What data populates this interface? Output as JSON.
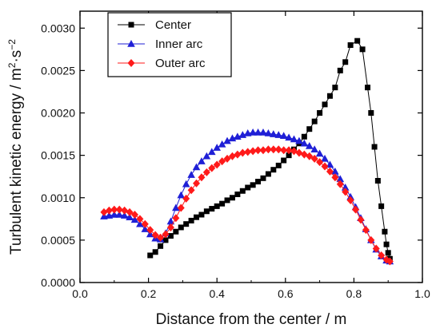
{
  "chart_data": {
    "type": "scatter",
    "xlabel": "Distance from the center / m",
    "ylabel": "Turbulent kinetic energy / m",
    "ylabel_sup1": "2",
    "ylabel_mid": "·s",
    "ylabel_sup2": "−2",
    "xlim": [
      0.0,
      1.0
    ],
    "ylim": [
      0.0,
      0.0032
    ],
    "x_ticks": [
      0.0,
      0.2,
      0.4,
      0.6,
      0.8,
      1.0
    ],
    "x_tick_labels": [
      "0.0",
      "0.2",
      "0.4",
      "0.6",
      "0.8",
      "1.0"
    ],
    "y_ticks": [
      0.0,
      0.0005,
      0.001,
      0.0015,
      0.002,
      0.0025,
      0.003
    ],
    "y_tick_labels": [
      "0.0000",
      "0.0005",
      "0.0010",
      "0.0015",
      "0.0020",
      "0.0025",
      "0.0030"
    ],
    "grid": false,
    "legend_position": "top-left",
    "series": [
      {
        "name": "Center",
        "color": "#000000",
        "marker": "square",
        "points": [
          [
            0.205,
            0.00032
          ],
          [
            0.22,
            0.00036
          ],
          [
            0.235,
            0.00043
          ],
          [
            0.25,
            0.0005
          ],
          [
            0.265,
            0.00055
          ],
          [
            0.28,
            0.0006
          ],
          [
            0.295,
            0.00065
          ],
          [
            0.31,
            0.00069
          ],
          [
            0.325,
            0.00073
          ],
          [
            0.34,
            0.00077
          ],
          [
            0.355,
            0.0008
          ],
          [
            0.37,
            0.00084
          ],
          [
            0.385,
            0.00087
          ],
          [
            0.4,
            0.0009
          ],
          [
            0.415,
            0.00093
          ],
          [
            0.43,
            0.00097
          ],
          [
            0.445,
            0.001
          ],
          [
            0.46,
            0.00104
          ],
          [
            0.475,
            0.00108
          ],
          [
            0.49,
            0.00112
          ],
          [
            0.505,
            0.00115
          ],
          [
            0.52,
            0.00119
          ],
          [
            0.535,
            0.00123
          ],
          [
            0.55,
            0.00128
          ],
          [
            0.565,
            0.00133
          ],
          [
            0.58,
            0.00138
          ],
          [
            0.595,
            0.00144
          ],
          [
            0.61,
            0.0015
          ],
          [
            0.625,
            0.00157
          ],
          [
            0.64,
            0.00164
          ],
          [
            0.655,
            0.00172
          ],
          [
            0.67,
            0.00181
          ],
          [
            0.685,
            0.0019
          ],
          [
            0.7,
            0.002
          ],
          [
            0.715,
            0.0021
          ],
          [
            0.73,
            0.0022
          ],
          [
            0.745,
            0.0023
          ],
          [
            0.76,
            0.0025
          ],
          [
            0.775,
            0.0026
          ],
          [
            0.79,
            0.0028
          ],
          [
            0.81,
            0.00285
          ],
          [
            0.825,
            0.00275
          ],
          [
            0.84,
            0.0023
          ],
          [
            0.85,
            0.002
          ],
          [
            0.86,
            0.0016
          ],
          [
            0.87,
            0.0012
          ],
          [
            0.88,
            0.0009
          ],
          [
            0.89,
            0.0006
          ],
          [
            0.895,
            0.00045
          ],
          [
            0.9,
            0.00035
          ],
          [
            0.905,
            0.00028
          ]
        ]
      },
      {
        "name": "Inner arc",
        "color": "#1f1fd6",
        "marker": "triangle",
        "points": [
          [
            0.07,
            0.00078
          ],
          [
            0.085,
            0.00079
          ],
          [
            0.1,
            0.0008
          ],
          [
            0.115,
            0.0008
          ],
          [
            0.13,
            0.00079
          ],
          [
            0.145,
            0.00077
          ],
          [
            0.16,
            0.00074
          ],
          [
            0.175,
            0.00069
          ],
          [
            0.19,
            0.00063
          ],
          [
            0.205,
            0.00057
          ],
          [
            0.22,
            0.00052
          ],
          [
            0.235,
            0.00051
          ],
          [
            0.25,
            0.00058
          ],
          [
            0.265,
            0.00072
          ],
          [
            0.28,
            0.00088
          ],
          [
            0.295,
            0.00103
          ],
          [
            0.31,
            0.00116
          ],
          [
            0.325,
            0.00127
          ],
          [
            0.34,
            0.00136
          ],
          [
            0.355,
            0.00143
          ],
          [
            0.37,
            0.00149
          ],
          [
            0.385,
            0.00154
          ],
          [
            0.4,
            0.00159
          ],
          [
            0.415,
            0.00163
          ],
          [
            0.43,
            0.00167
          ],
          [
            0.445,
            0.0017
          ],
          [
            0.46,
            0.00172
          ],
          [
            0.475,
            0.00174
          ],
          [
            0.49,
            0.00176
          ],
          [
            0.505,
            0.00177
          ],
          [
            0.52,
            0.00177
          ],
          [
            0.535,
            0.00177
          ],
          [
            0.55,
            0.00176
          ],
          [
            0.565,
            0.00175
          ],
          [
            0.58,
            0.00174
          ],
          [
            0.595,
            0.00173
          ],
          [
            0.61,
            0.00171
          ],
          [
            0.625,
            0.00169
          ],
          [
            0.64,
            0.00167
          ],
          [
            0.655,
            0.00164
          ],
          [
            0.67,
            0.00161
          ],
          [
            0.685,
            0.00157
          ],
          [
            0.7,
            0.00152
          ],
          [
            0.715,
            0.00146
          ],
          [
            0.73,
            0.00139
          ],
          [
            0.745,
            0.00131
          ],
          [
            0.76,
            0.00122
          ],
          [
            0.775,
            0.00112
          ],
          [
            0.79,
            0.00101
          ],
          [
            0.805,
            0.00089
          ],
          [
            0.82,
            0.00076
          ],
          [
            0.835,
            0.00063
          ],
          [
            0.85,
            0.0005
          ],
          [
            0.865,
            0.00039
          ],
          [
            0.88,
            0.00031
          ],
          [
            0.895,
            0.00026
          ],
          [
            0.905,
            0.00025
          ]
        ]
      },
      {
        "name": "Outer arc",
        "color": "#ff1a1a",
        "marker": "diamond",
        "points": [
          [
            0.07,
            0.00083
          ],
          [
            0.085,
            0.00085
          ],
          [
            0.1,
            0.00086
          ],
          [
            0.115,
            0.00086
          ],
          [
            0.13,
            0.00085
          ],
          [
            0.145,
            0.00083
          ],
          [
            0.16,
            0.0008
          ],
          [
            0.175,
            0.00075
          ],
          [
            0.19,
            0.00069
          ],
          [
            0.205,
            0.00062
          ],
          [
            0.22,
            0.00056
          ],
          [
            0.235,
            0.00053
          ],
          [
            0.25,
            0.00057
          ],
          [
            0.265,
            0.00065
          ],
          [
            0.28,
            0.00076
          ],
          [
            0.295,
            0.00088
          ],
          [
            0.31,
            0.00099
          ],
          [
            0.325,
            0.00109
          ],
          [
            0.34,
            0.00117
          ],
          [
            0.355,
            0.00124
          ],
          [
            0.37,
            0.0013
          ],
          [
            0.385,
            0.00135
          ],
          [
            0.4,
            0.00139
          ],
          [
            0.415,
            0.00143
          ],
          [
            0.43,
            0.00146
          ],
          [
            0.445,
            0.00149
          ],
          [
            0.46,
            0.00151
          ],
          [
            0.475,
            0.00153
          ],
          [
            0.49,
            0.00154
          ],
          [
            0.505,
            0.00155
          ],
          [
            0.52,
            0.00156
          ],
          [
            0.535,
            0.00156
          ],
          [
            0.55,
            0.00157
          ],
          [
            0.565,
            0.00157
          ],
          [
            0.58,
            0.00157
          ],
          [
            0.595,
            0.00156
          ],
          [
            0.61,
            0.00156
          ],
          [
            0.625,
            0.00155
          ],
          [
            0.64,
            0.00153
          ],
          [
            0.655,
            0.00151
          ],
          [
            0.67,
            0.00149
          ],
          [
            0.685,
            0.00146
          ],
          [
            0.7,
            0.00142
          ],
          [
            0.715,
            0.00137
          ],
          [
            0.73,
            0.00131
          ],
          [
            0.745,
            0.00124
          ],
          [
            0.76,
            0.00116
          ],
          [
            0.775,
            0.00107
          ],
          [
            0.79,
            0.00097
          ],
          [
            0.805,
            0.00086
          ],
          [
            0.82,
            0.00074
          ],
          [
            0.835,
            0.00062
          ],
          [
            0.85,
            0.0005
          ],
          [
            0.865,
            0.0004
          ],
          [
            0.88,
            0.00032
          ],
          [
            0.895,
            0.00027
          ],
          [
            0.905,
            0.00025
          ]
        ]
      }
    ]
  }
}
